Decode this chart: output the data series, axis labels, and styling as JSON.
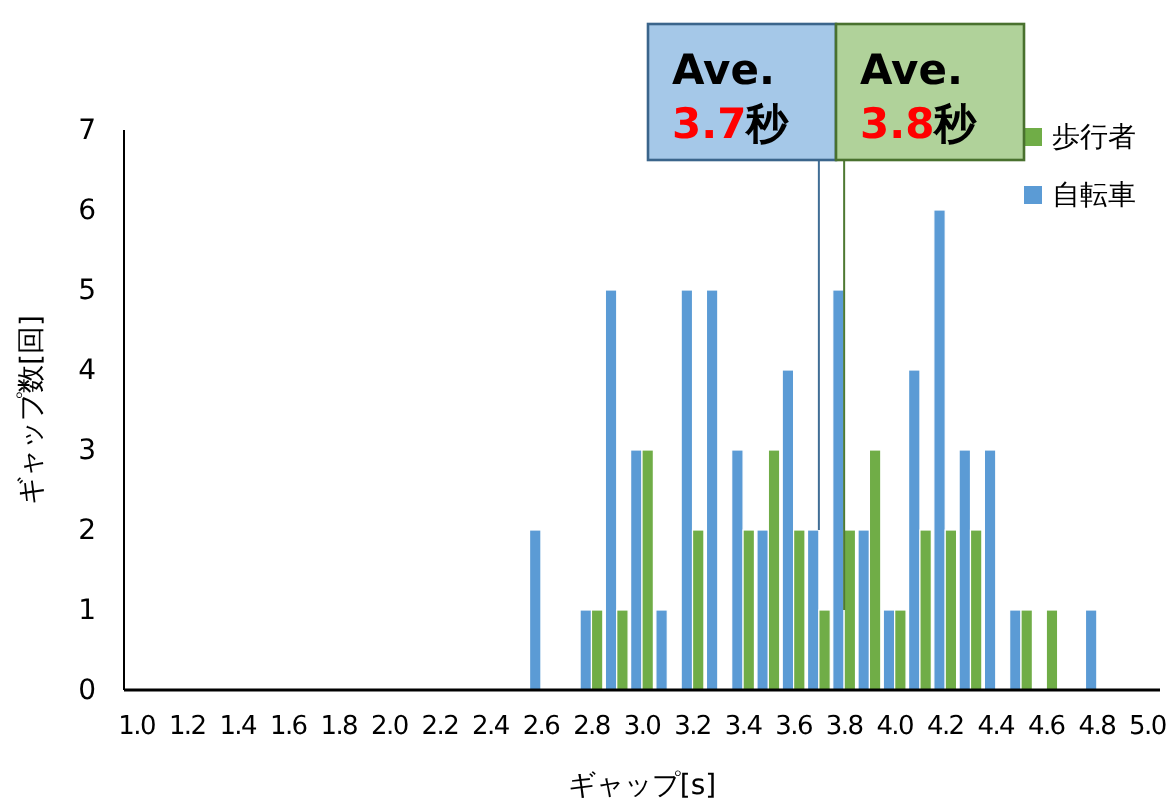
{
  "chart_data": {
    "type": "bar",
    "xlabel": "ギャップ[s]",
    "ylabel": "ギャップ数[回]",
    "x": [
      1.0,
      1.1,
      1.2,
      1.3,
      1.4,
      1.5,
      1.6,
      1.7,
      1.8,
      1.9,
      2.0,
      2.1,
      2.2,
      2.3,
      2.4,
      2.5,
      2.6,
      2.7,
      2.8,
      2.9,
      3.0,
      3.1,
      3.2,
      3.3,
      3.4,
      3.5,
      3.6,
      3.7,
      3.8,
      3.9,
      4.0,
      4.1,
      4.2,
      4.3,
      4.4,
      4.5,
      4.6,
      4.7,
      4.8,
      4.9,
      5.0
    ],
    "series": [
      {
        "name": "自転車",
        "color": "#5b9bd5",
        "values": [
          0,
          0,
          0,
          0,
          0,
          0,
          0,
          0,
          0,
          0,
          0,
          0,
          0,
          0,
          0,
          0,
          2,
          0,
          1,
          5,
          3,
          1,
          5,
          5,
          3,
          2,
          4,
          2,
          5,
          2,
          1,
          4,
          6,
          3,
          3,
          1,
          0,
          0,
          1,
          0,
          0
        ]
      },
      {
        "name": "歩行者",
        "color": "#70ad47",
        "values": [
          0,
          0,
          0,
          0,
          0,
          0,
          0,
          0,
          0,
          0,
          0,
          0,
          0,
          0,
          0,
          0,
          0,
          0,
          1,
          1,
          3,
          0,
          2,
          0,
          2,
          3,
          2,
          1,
          2,
          3,
          1,
          2,
          2,
          2,
          0,
          1,
          1,
          0,
          0,
          0,
          0
        ]
      }
    ],
    "xlim": [
      0.95,
      5.05
    ],
    "xticks": [
      {
        "value": 1.0,
        "label": "1.0"
      },
      {
        "value": 1.2,
        "label": "1.2"
      },
      {
        "value": 1.4,
        "label": "1.4"
      },
      {
        "value": 1.6,
        "label": "1.6"
      },
      {
        "value": 1.8,
        "label": "1.8"
      },
      {
        "value": 2.0,
        "label": "2.0"
      },
      {
        "value": 2.2,
        "label": "2.2"
      },
      {
        "value": 2.4,
        "label": "2.4"
      },
      {
        "value": 2.6,
        "label": "2.6"
      },
      {
        "value": 2.8,
        "label": "2.8"
      },
      {
        "value": 3.0,
        "label": "3.0"
      },
      {
        "value": 3.2,
        "label": "3.2"
      },
      {
        "value": 3.4,
        "label": "3.4"
      },
      {
        "value": 3.6,
        "label": "3.6"
      },
      {
        "value": 3.8,
        "label": "3.8"
      },
      {
        "value": 4.0,
        "label": "4.0"
      },
      {
        "value": 4.2,
        "label": "4.2"
      },
      {
        "value": 4.4,
        "label": "4.4"
      },
      {
        "value": 4.6,
        "label": "4.6"
      },
      {
        "value": 4.8,
        "label": "4.8"
      },
      {
        "value": 5.0,
        "label": "5.0"
      }
    ],
    "ylim": [
      0,
      7
    ],
    "yticks": [
      0,
      1,
      2,
      3,
      4,
      5,
      6,
      7
    ],
    "legend": "right",
    "annotations": [
      {
        "text": "Ave.\n3.7秒",
        "x": 3.7,
        "y": 2
      },
      {
        "text": "Ave.\n3.8秒",
        "x": 3.8,
        "y": 1
      }
    ]
  }
}
